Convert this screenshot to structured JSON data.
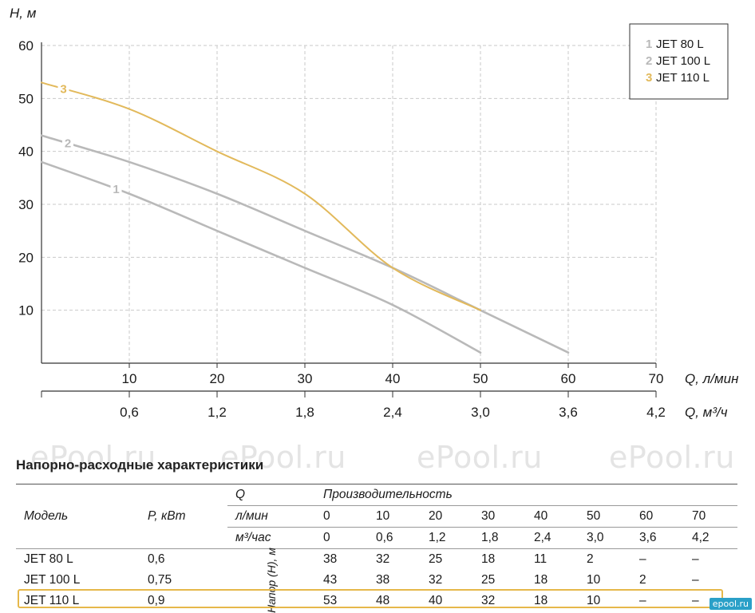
{
  "chart_data": {
    "type": "line",
    "ylabel": "H, м",
    "xlabel": "Q, л/мин",
    "x2label": "Q, м³/ч",
    "ylim": [
      0,
      60
    ],
    "xlim": [
      0,
      70
    ],
    "yticks": [
      "10",
      "20",
      "30",
      "40",
      "50",
      "60"
    ],
    "xticks": [
      "10",
      "20",
      "30",
      "40",
      "50",
      "60",
      "70"
    ],
    "x2ticks": [
      "0,6",
      "1,2",
      "1,8",
      "2,4",
      "3,0",
      "3,6",
      "4,2"
    ],
    "grid": true,
    "legend_position": "top-right",
    "series": [
      {
        "name": "JET 80 L",
        "number": "1",
        "color": "#b9b9b9",
        "x": [
          0,
          10,
          20,
          30,
          40,
          50
        ],
        "y": [
          38,
          32,
          25,
          18,
          11,
          2
        ]
      },
      {
        "name": "JET 100 L",
        "number": "2",
        "color": "#b9b9b9",
        "x": [
          0,
          10,
          20,
          30,
          40,
          50,
          60
        ],
        "y": [
          43,
          38,
          32,
          25,
          18,
          10,
          2
        ]
      },
      {
        "name": "JET 110 L",
        "number": "3",
        "color": "#e2b95b",
        "x": [
          0,
          10,
          20,
          30,
          40,
          50
        ],
        "y": [
          53,
          48,
          40,
          32,
          18,
          10
        ]
      }
    ]
  },
  "watermark": "ePool.ru",
  "table": {
    "title": "Напорно-расходные характеристики",
    "col_model": "Модель",
    "col_power": "P, кВт",
    "q_label": "Q",
    "perf_label": "Производительность",
    "lmin_label": "л/мин",
    "m3_label": "м³/час",
    "head_label": "Напор (H), м",
    "lmin": [
      "0",
      "10",
      "20",
      "30",
      "40",
      "50",
      "60",
      "70"
    ],
    "m3": [
      "0",
      "0,6",
      "1,2",
      "1,8",
      "2,4",
      "3,0",
      "3,6",
      "4,2"
    ],
    "rows": [
      {
        "model": "JET 80 L",
        "power": "0,6",
        "values": [
          "38",
          "32",
          "25",
          "18",
          "11",
          "2",
          "–",
          "–"
        ]
      },
      {
        "model": "JET 100 L",
        "power": "0,75",
        "values": [
          "43",
          "38",
          "32",
          "25",
          "18",
          "10",
          "2",
          "–"
        ]
      },
      {
        "model": "JET 110 L",
        "power": "0,9",
        "values": [
          "53",
          "48",
          "40",
          "32",
          "18",
          "10",
          "–",
          "–"
        ]
      }
    ]
  },
  "logo": "epool.ru"
}
